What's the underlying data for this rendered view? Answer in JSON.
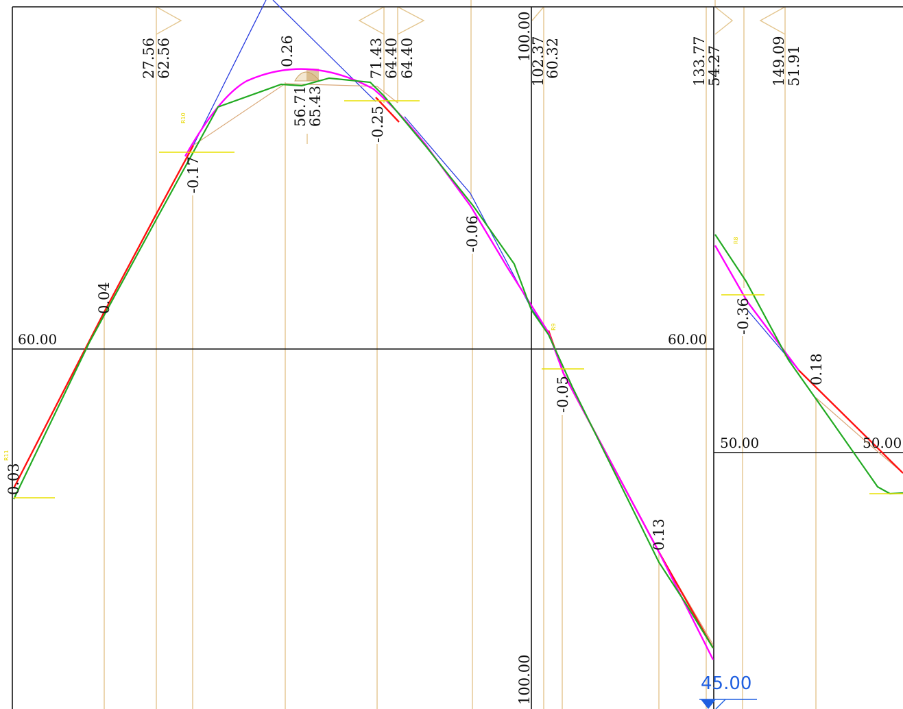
{
  "colors": {
    "background": "#ffffff",
    "frame": "#111111",
    "guide_line": "#e3c58e",
    "design_profile": "#ff00ff",
    "existing_ground": "#22aa22",
    "grade_line": "#ff1010",
    "tangent_line": "#2a3de0",
    "marker": "#e8e000",
    "elevation_marker": "#1f5fe0"
  },
  "elevation_labels": {
    "left_60": "60.00",
    "mid_60": "60.00",
    "right_50_a": "50.00",
    "right_50_b": "50.00",
    "bottom_100": "100.00"
  },
  "station_labels": [
    {
      "id": "s1a",
      "text": "27.56"
    },
    {
      "id": "s1b",
      "text": "62.56"
    },
    {
      "id": "s2",
      "text": "0.26"
    },
    {
      "id": "s3a",
      "text": "56.71"
    },
    {
      "id": "s3b",
      "text": "65.43"
    },
    {
      "id": "s4a",
      "text": "71.43"
    },
    {
      "id": "s4b",
      "text": "64.40"
    },
    {
      "id": "s4c",
      "text": "64.40"
    },
    {
      "id": "s5a",
      "text": "100.00"
    },
    {
      "id": "s5b",
      "text": "102.37"
    },
    {
      "id": "s5c",
      "text": "60.32"
    },
    {
      "id": "s6a",
      "text": "133.77"
    },
    {
      "id": "s6b",
      "text": "54.27"
    },
    {
      "id": "s7a",
      "text": "149.09"
    },
    {
      "id": "s7b",
      "text": "51.91"
    }
  ],
  "grade_labels": [
    {
      "id": "g1",
      "text": "0.03"
    },
    {
      "id": "g2",
      "text": "0.04"
    },
    {
      "id": "g3",
      "text": "-0.17"
    },
    {
      "id": "g4",
      "text": "-0.25"
    },
    {
      "id": "g5",
      "text": "-0.06"
    },
    {
      "id": "g6",
      "text": "-0.05"
    },
    {
      "id": "g7",
      "text": "0.13"
    },
    {
      "id": "g8",
      "text": "-0.36"
    },
    {
      "id": "g9",
      "text": "0.18"
    }
  ],
  "marker_tags": [
    "R10",
    "R9",
    "R8",
    "R11"
  ],
  "elevation_marker_value": "45.00"
}
